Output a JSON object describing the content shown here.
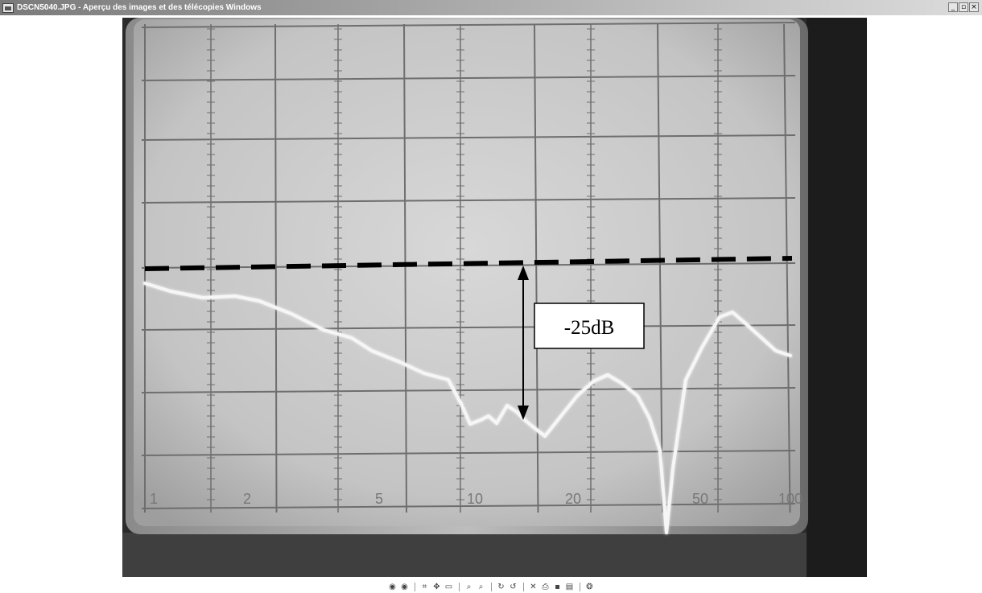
{
  "window": {
    "title": "DSCN5040.JPG - Aperçu des images et des télécopies Windows",
    "controls": {
      "minimize": "_",
      "restore": "▫",
      "close": "×"
    }
  },
  "photo": {
    "annotation": {
      "label": "-25dB"
    },
    "x_tick_labels": [
      "1",
      "2",
      "5",
      "10",
      "20",
      "50",
      "100"
    ]
  },
  "toolbar": {
    "buttons": [
      {
        "icon": "previous-image-icon",
        "glyph": "◉"
      },
      {
        "icon": "next-image-icon",
        "glyph": "◉"
      },
      {
        "sep": true
      },
      {
        "icon": "best-fit-icon",
        "glyph": "⌗"
      },
      {
        "icon": "actual-size-icon",
        "glyph": "✥"
      },
      {
        "icon": "slideshow-icon",
        "glyph": "▭"
      },
      {
        "sep": true
      },
      {
        "icon": "zoom-in-icon",
        "glyph": "⌕"
      },
      {
        "icon": "zoom-out-icon",
        "glyph": "⌕"
      },
      {
        "sep": true
      },
      {
        "icon": "rotate-clockwise-icon",
        "glyph": "↻"
      },
      {
        "icon": "rotate-counterclockwise-icon",
        "glyph": "↺"
      },
      {
        "sep": true
      },
      {
        "icon": "delete-icon",
        "glyph": "✕"
      },
      {
        "icon": "print-icon",
        "glyph": "⎙"
      },
      {
        "icon": "save-icon",
        "glyph": "▪"
      },
      {
        "icon": "open-with-icon",
        "glyph": "▤"
      },
      {
        "sep": true
      },
      {
        "icon": "help-icon",
        "glyph": "❂"
      }
    ]
  }
}
